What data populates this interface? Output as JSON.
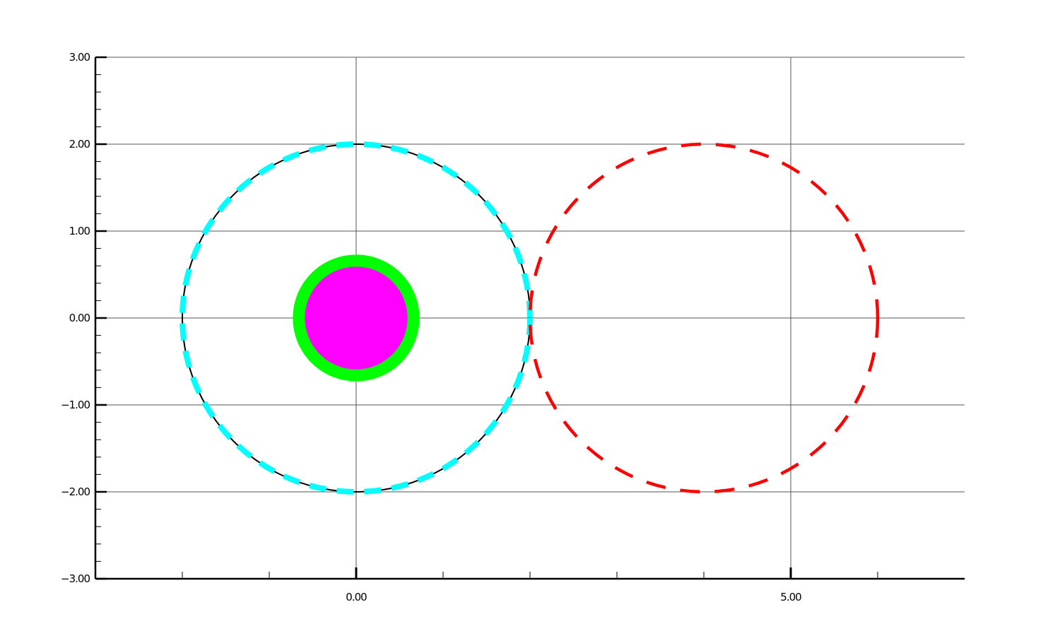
{
  "chart_data": {
    "type": "scatter",
    "title": "",
    "xlabel": "",
    "ylabel": "",
    "xlim": [
      -3.0,
      7.0
    ],
    "ylim": [
      -3.0,
      3.0
    ],
    "grid": true,
    "x_ticks": {
      "major": [
        0.0,
        5.0
      ],
      "gridlines": [
        0.0,
        5.0
      ],
      "minor": [
        -2.0,
        -1.0,
        1.0,
        2.0,
        3.0,
        4.0,
        6.0
      ],
      "labels": [
        "0.00",
        "5.00"
      ]
    },
    "y_ticks": {
      "major": [
        -3.0,
        -2.0,
        -1.0,
        0.0,
        1.0,
        2.0,
        3.0
      ],
      "minor_step": 0.2,
      "labels": [
        "−3.00",
        "−2.00",
        "−1.00",
        "0.00",
        "1.00",
        "2.00",
        "3.00"
      ]
    },
    "shapes": [
      {
        "kind": "circle",
        "cx": 0.0,
        "cy": 0.0,
        "r": 2.0,
        "stroke": "#000000",
        "style": "solid",
        "fill": "none"
      },
      {
        "kind": "circle",
        "cx": 0.0,
        "cy": 0.0,
        "r": 2.0,
        "stroke": "#00ffff",
        "style": "dashed",
        "fill": "none"
      },
      {
        "kind": "circle",
        "cx": 4.0,
        "cy": 0.0,
        "r": 2.0,
        "stroke": "#ff0000",
        "style": "dashed",
        "fill": "none"
      },
      {
        "kind": "circle",
        "cx": 0.0,
        "cy": 0.0,
        "r": 0.66,
        "stroke": "#00ff00",
        "style": "solid",
        "fill": "#ff00ff"
      }
    ]
  }
}
